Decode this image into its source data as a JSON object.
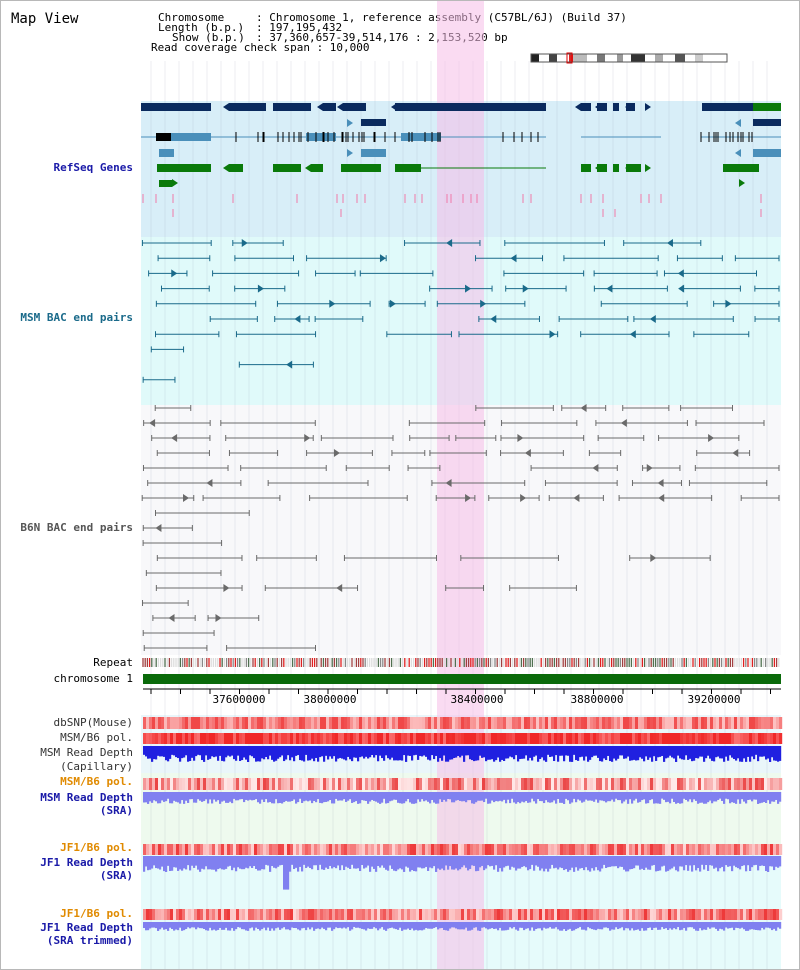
{
  "page": {
    "title": "Map View"
  },
  "info": {
    "chromosome_key": "Chromosome",
    "chromosome_val": ": Chromosome 1, reference assembly (C57BL/6J) (Build 37)",
    "length_key": "Length (b.p.)",
    "length_val": ": 197,195,432",
    "show_key": "Show (b.p.)",
    "show_val": ": 37,360,657-39,514,176 : 2,153,520 bp",
    "coverage": "Read coverage check span : 10,000"
  },
  "tracks": {
    "refseq": "RefSeq Genes",
    "msm_bac": "MSM BAC end pairs",
    "b6n_bac": "B6N BAC end pairs",
    "repeat": "Repeat",
    "chromosome": "chromosome 1",
    "dbsnp": "dbSNP(Mouse)",
    "msm_b6_pol_1": "MSM/B6 pol.",
    "msm_read_depth_cap_1": "MSM Read Depth",
    "msm_read_depth_cap_2": "(Capillary)",
    "msm_b6_pol_2": "MSM/B6 pol.",
    "msm_read_depth_sra_1": "MSM Read Depth",
    "msm_read_depth_sra_2": "(SRA)",
    "jf1_b6_pol_1": "JF1/B6 pol.",
    "jf1_read_depth_sra_1": "JF1 Read Depth",
    "jf1_read_depth_sra_2": "(SRA)",
    "jf1_b6_pol_2": "JF1/B6 pol.",
    "jf1_read_depth_trim_1": "JF1 Read Depth",
    "jf1_read_depth_trim_2": "(SRA trimmed)"
  },
  "axis": {
    "ticks": [
      "37600000",
      "38000000",
      "38400000",
      "38800000",
      "39200000"
    ]
  },
  "colors": {
    "refseq_bg": "#d8eef8",
    "msm_bg": "#e0fafa",
    "b6n_bg": "#f8f8fa",
    "highlight": "#f8d8f0",
    "gene_navy": "#0a2a5e",
    "gene_steel": "#4a8fba",
    "gene_green": "#0a7a0a",
    "msm_line": "#1a6a8a",
    "b6n_line": "#6a6a6a",
    "snp_red": "#f04040",
    "depth_blue": "#2020e0",
    "depth_lavender": "#8080f0",
    "label_blue": "#1a1aa8",
    "label_orange": "#e08a00",
    "label_teal": "#1a6a8a"
  }
}
